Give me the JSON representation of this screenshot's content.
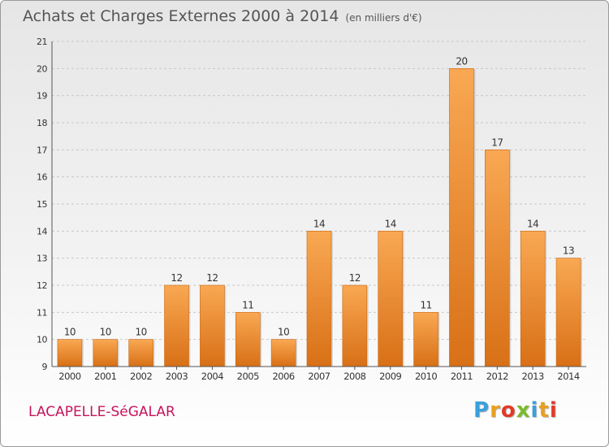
{
  "title": "Achats et Charges Externes 2000 à 2014",
  "subtitle": "(en milliers d'€)",
  "commune": "LACAPELLE-SéGALAR",
  "logo": {
    "text": "Proxiti",
    "colors": [
      "#3aa0dc",
      "#e8a020",
      "#e23a2a",
      "#7dbb2e",
      "#3aa0dc",
      "#e8a020",
      "#e23a2a"
    ]
  },
  "colors": {
    "bar_light": "#f9a853",
    "bar_dark": "#d87016",
    "axis_text": "#333333",
    "grid": "#c8c8c8"
  },
  "chart_data": {
    "type": "bar",
    "categories": [
      "2000",
      "2001",
      "2002",
      "2003",
      "2004",
      "2005",
      "2006",
      "2007",
      "2008",
      "2009",
      "2010",
      "2011",
      "2012",
      "2013",
      "2014"
    ],
    "values": [
      10,
      10,
      10,
      12,
      12,
      11,
      10,
      14,
      12,
      14,
      11,
      20,
      17,
      14,
      13
    ],
    "ylim": [
      9,
      21
    ],
    "yticks": [
      9,
      10,
      11,
      12,
      13,
      14,
      15,
      16,
      17,
      18,
      19,
      20,
      21
    ],
    "grid": true,
    "xlabel": "",
    "ylabel": ""
  }
}
